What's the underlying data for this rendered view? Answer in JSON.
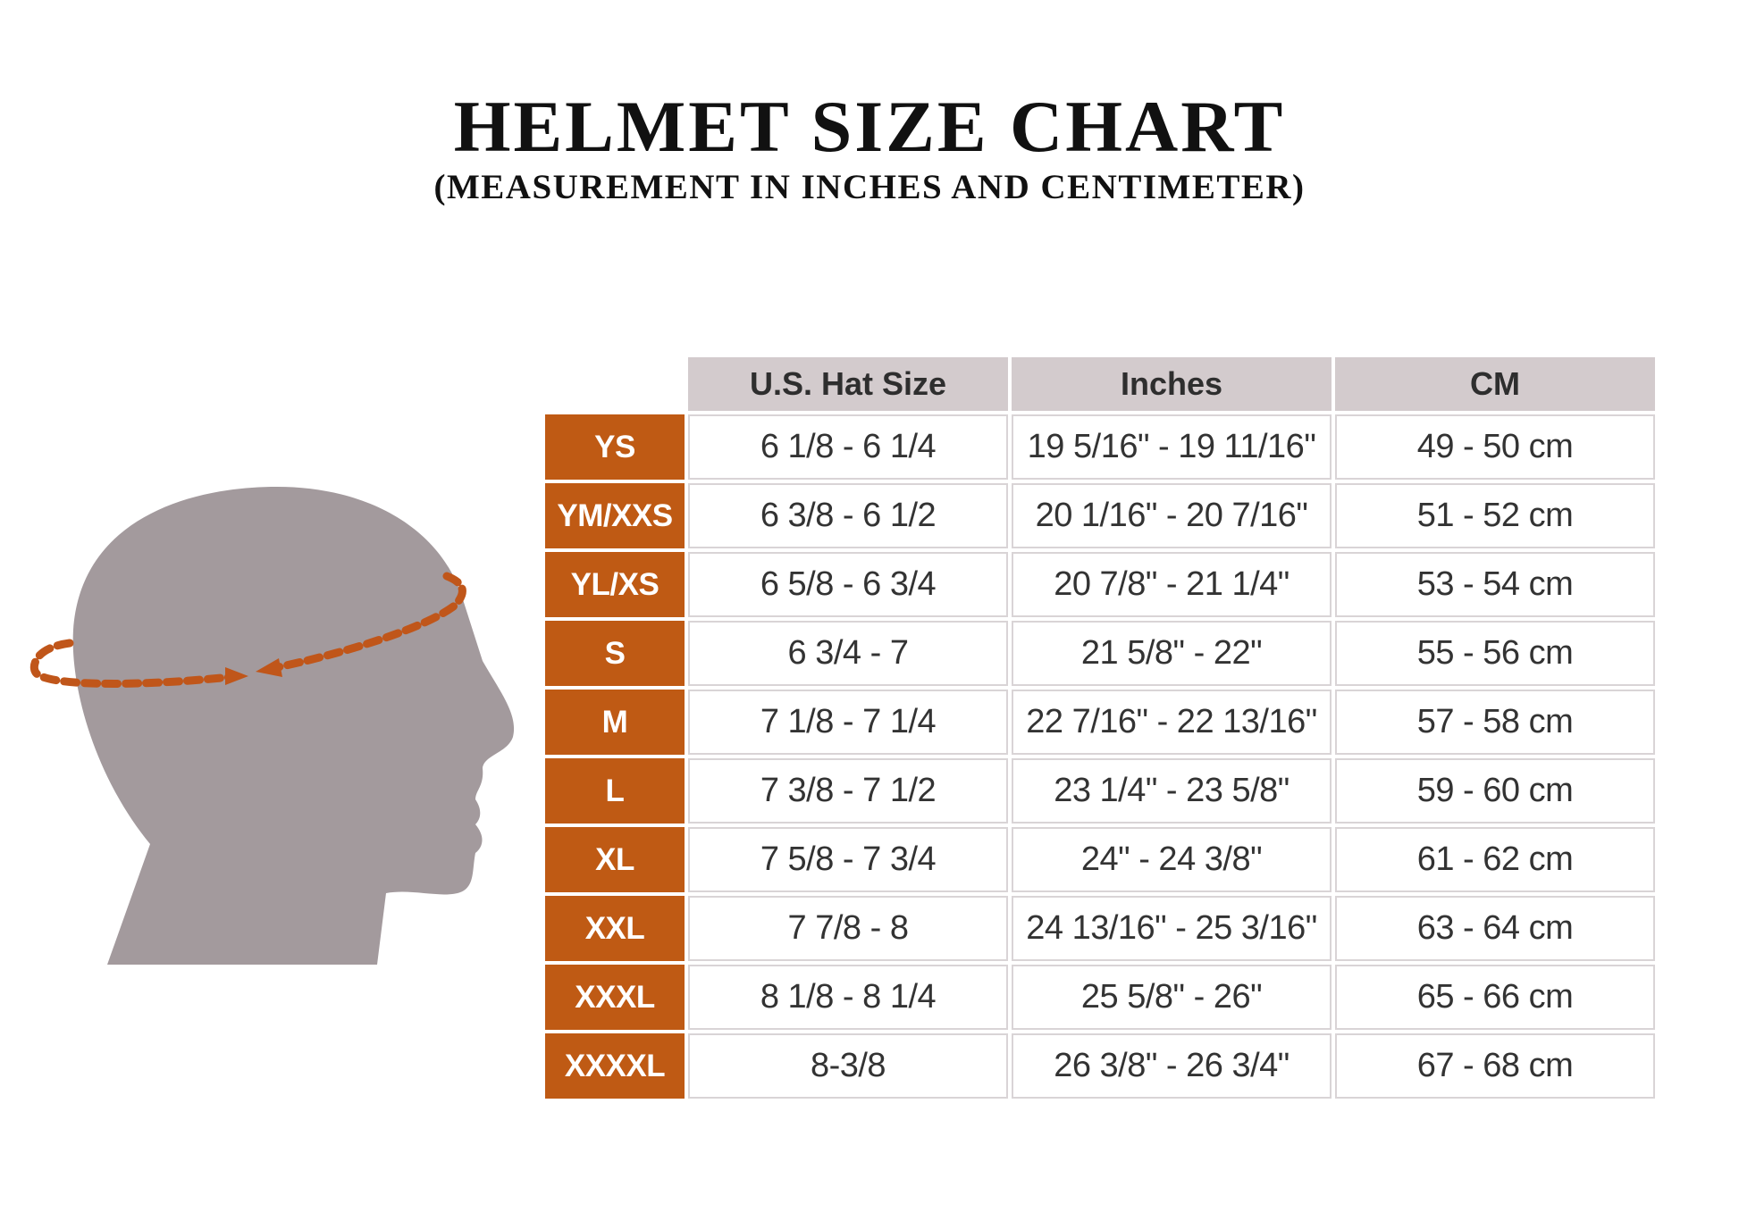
{
  "title": "HELMET SIZE CHART",
  "subtitle": "(MEASUREMENT IN INCHES AND CENTIMETER)",
  "colors": {
    "size_label_bg": "#bf5a14",
    "header_bg": "#d3cbcd",
    "head_silhouette": "#a39a9d",
    "measure_arrow": "#c0561a"
  },
  "table": {
    "headers": [
      "U.S. Hat Size",
      "Inches",
      "CM"
    ],
    "rows": [
      {
        "size": "YS",
        "hat": "6 1/8 - 6 1/4",
        "inches": "19 5/16\" - 19 11/16\"",
        "cm": "49 - 50 cm"
      },
      {
        "size": "YM/XXS",
        "hat": "6 3/8 - 6 1/2",
        "inches": "20 1/16\" - 20 7/16\"",
        "cm": "51 - 52 cm"
      },
      {
        "size": "YL/XS",
        "hat": "6 5/8 - 6 3/4",
        "inches": "20 7/8\" - 21 1/4\"",
        "cm": "53 - 54 cm"
      },
      {
        "size": "S",
        "hat": "6 3/4 - 7",
        "inches": "21 5/8\" - 22\"",
        "cm": "55 - 56 cm"
      },
      {
        "size": "M",
        "hat": "7 1/8 - 7 1/4",
        "inches": "22 7/16\" - 22 13/16\"",
        "cm": "57 - 58 cm"
      },
      {
        "size": "L",
        "hat": "7 3/8 - 7 1/2",
        "inches": "23 1/4\" - 23 5/8\"",
        "cm": "59 - 60 cm"
      },
      {
        "size": "XL",
        "hat": "7 5/8 - 7 3/4",
        "inches": "24\" - 24 3/8\"",
        "cm": "61 - 62 cm"
      },
      {
        "size": "XXL",
        "hat": "7 7/8 - 8",
        "inches": "24 13/16\" - 25 3/16\"",
        "cm": "63 - 64 cm"
      },
      {
        "size": "XXXL",
        "hat": "8 1/8 - 8 1/4",
        "inches": "25 5/8\" - 26\"",
        "cm": "65 - 66 cm"
      },
      {
        "size": "XXXXL",
        "hat": "8-3/8",
        "inches": "26 3/8\" - 26 3/4\"",
        "cm": "67 - 68 cm"
      }
    ]
  },
  "illustration": {
    "icon": "head-circumference-icon"
  }
}
